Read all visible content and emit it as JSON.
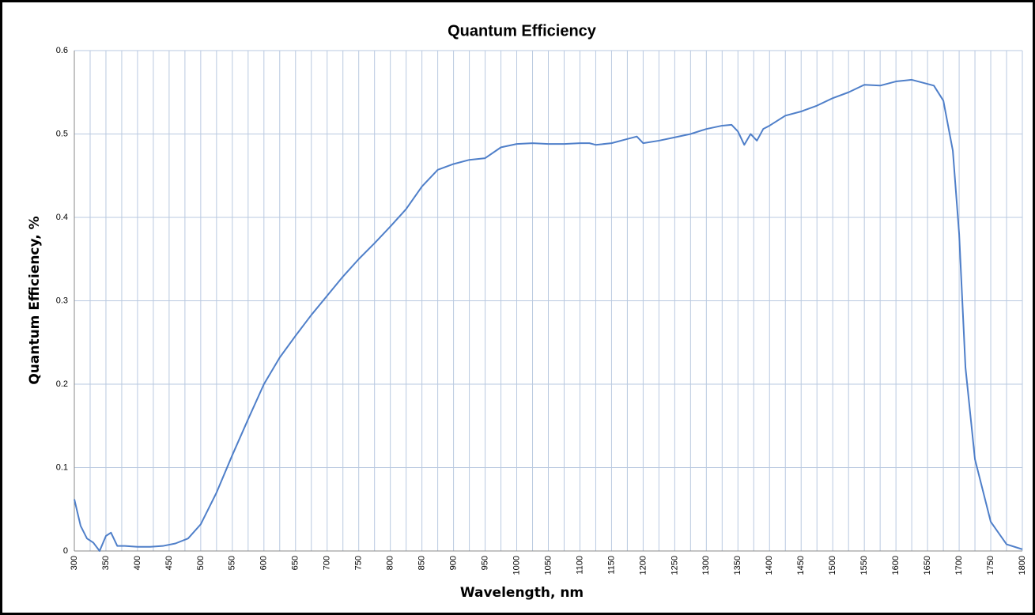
{
  "chart_data": {
    "type": "line",
    "title": "Quantum Efficiency",
    "x_label": "Wavelength, nm",
    "y_label": "Quantum Efficiency, %",
    "x": [
      300,
      310,
      320,
      330,
      340,
      350,
      358,
      368,
      380,
      400,
      420,
      440,
      460,
      480,
      500,
      525,
      550,
      575,
      600,
      625,
      650,
      675,
      700,
      725,
      750,
      775,
      800,
      825,
      850,
      875,
      900,
      925,
      950,
      975,
      1000,
      1025,
      1050,
      1075,
      1100,
      1115,
      1125,
      1150,
      1175,
      1190,
      1200,
      1225,
      1250,
      1275,
      1300,
      1325,
      1340,
      1350,
      1360,
      1370,
      1380,
      1390,
      1400,
      1425,
      1450,
      1475,
      1500,
      1525,
      1550,
      1575,
      1600,
      1625,
      1650,
      1660,
      1675,
      1690,
      1700,
      1710,
      1725,
      1750,
      1775,
      1800
    ],
    "series": [
      {
        "name": "Quantum Efficiency",
        "color": "#4f7fc9",
        "values": [
          0.062,
          0.03,
          0.015,
          0.01,
          0.0,
          0.018,
          0.022,
          0.006,
          0.006,
          0.005,
          0.005,
          0.006,
          0.009,
          0.015,
          0.032,
          0.07,
          0.115,
          0.158,
          0.2,
          0.232,
          0.258,
          0.283,
          0.306,
          0.329,
          0.35,
          0.369,
          0.389,
          0.41,
          0.437,
          0.457,
          0.464,
          0.469,
          0.471,
          0.484,
          0.488,
          0.489,
          0.488,
          0.488,
          0.489,
          0.489,
          0.487,
          0.489,
          0.494,
          0.497,
          0.489,
          0.492,
          0.496,
          0.5,
          0.506,
          0.51,
          0.511,
          0.503,
          0.487,
          0.5,
          0.492,
          0.506,
          0.51,
          0.522,
          0.527,
          0.534,
          0.543,
          0.55,
          0.559,
          0.558,
          0.563,
          0.565,
          0.56,
          0.558,
          0.54,
          0.48,
          0.38,
          0.22,
          0.11,
          0.035,
          0.008,
          0.002
        ]
      }
    ],
    "xlim": [
      300,
      1800
    ],
    "ylim": [
      0,
      0.6
    ],
    "xticks": [
      300,
      350,
      400,
      450,
      500,
      550,
      600,
      650,
      700,
      750,
      800,
      850,
      900,
      950,
      1000,
      1050,
      1100,
      1150,
      1200,
      1250,
      1300,
      1350,
      1400,
      1450,
      1500,
      1550,
      1600,
      1650,
      1700,
      1750,
      1800
    ],
    "xminorticks": [
      325,
      375,
      425,
      475,
      525,
      575,
      625,
      675,
      725,
      775,
      825,
      875,
      925,
      975,
      1025,
      1075,
      1125,
      1175,
      1225,
      1275,
      1325,
      1375,
      1425,
      1475,
      1525,
      1575,
      1625,
      1675,
      1725,
      1775
    ],
    "yticks": [
      0,
      0.1,
      0.2,
      0.3,
      0.4,
      0.5,
      0.6
    ],
    "grid": true
  }
}
